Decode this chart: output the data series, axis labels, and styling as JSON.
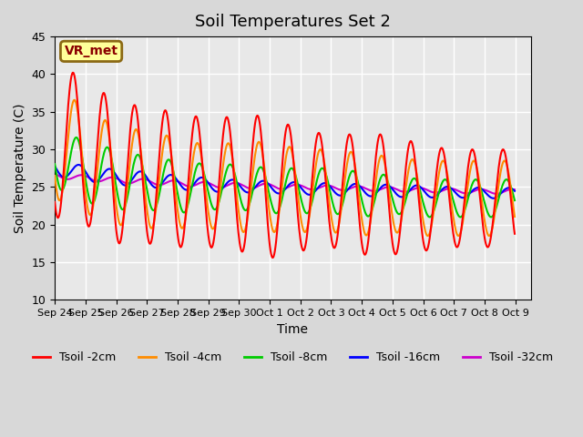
{
  "title": "Soil Temperatures Set 2",
  "xlabel": "Time",
  "ylabel": "Soil Temperature (C)",
  "ylim": [
    10,
    45
  ],
  "plot_bg_color": "#e8e8e8",
  "fig_bg_color": "#d8d8d8",
  "annotation_label": "VR_met",
  "x_tick_labels": [
    "Sep 24",
    "Sep 25",
    "Sep 26",
    "Sep 27",
    "Sep 28",
    "Sep 29",
    "Sep 30",
    "Oct 1",
    "Oct 2",
    "Oct 3",
    "Oct 4",
    "Oct 5",
    "Oct 6",
    "Oct 7",
    "Oct 8",
    "Oct 9"
  ],
  "legend_entries": [
    "Tsoil -2cm",
    "Tsoil -4cm",
    "Tsoil -8cm",
    "Tsoil -16cm",
    "Tsoil -32cm"
  ],
  "line_colors": [
    "#ff0000",
    "#ff8c00",
    "#00cc00",
    "#0000ff",
    "#cc00cc"
  ],
  "n_days": 15,
  "means_2cm": [
    31.5,
    29.5,
    27.0,
    26.5,
    26.0,
    25.5,
    25.5,
    25.0,
    24.5,
    24.5,
    24.0,
    24.0,
    23.5,
    23.5,
    23.5
  ],
  "amps_2cm": [
    10.5,
    9.5,
    9.5,
    9.0,
    9.0,
    8.5,
    9.0,
    9.5,
    8.0,
    7.5,
    8.0,
    8.0,
    7.0,
    6.5,
    6.5
  ],
  "phase_2cm": 0.0,
  "means_4cm": [
    31.0,
    28.5,
    26.5,
    26.0,
    25.5,
    25.0,
    25.0,
    25.0,
    24.5,
    24.5,
    24.0,
    24.0,
    23.5,
    23.5,
    23.5
  ],
  "amps_4cm": [
    7.5,
    7.0,
    6.5,
    6.5,
    6.0,
    5.5,
    6.0,
    6.0,
    5.5,
    5.5,
    5.5,
    5.0,
    5.0,
    5.0,
    5.0
  ],
  "phase_4cm": -0.3,
  "means_8cm": [
    29.0,
    27.0,
    26.0,
    25.5,
    25.0,
    25.0,
    25.0,
    24.5,
    24.5,
    24.5,
    24.0,
    24.0,
    23.5,
    23.5,
    23.5
  ],
  "amps_8cm": [
    4.0,
    4.0,
    4.0,
    3.5,
    3.5,
    3.0,
    3.0,
    3.0,
    3.0,
    3.0,
    3.0,
    2.5,
    2.5,
    2.5,
    2.5
  ],
  "phase_8cm": -0.7,
  "means_16cm": [
    27.5,
    26.8,
    26.3,
    26.0,
    25.6,
    25.3,
    25.1,
    25.0,
    24.8,
    24.7,
    24.6,
    24.5,
    24.4,
    24.3,
    24.2
  ],
  "amps_16cm": [
    1.0,
    1.0,
    1.0,
    1.0,
    0.9,
    0.9,
    0.8,
    0.8,
    0.8,
    0.8,
    0.8,
    0.8,
    0.8,
    0.7,
    0.7
  ],
  "phase_16cm": -1.2,
  "means_32cm": [
    26.5,
    26.2,
    25.9,
    25.7,
    25.5,
    25.3,
    25.2,
    25.1,
    25.0,
    24.9,
    24.8,
    24.7,
    24.6,
    24.5,
    24.4
  ],
  "amps_32cm": [
    0.35,
    0.35,
    0.35,
    0.35,
    0.35,
    0.35,
    0.35,
    0.35,
    0.3,
    0.3,
    0.3,
    0.3,
    0.3,
    0.3,
    0.3
  ],
  "phase_32cm": -1.8
}
